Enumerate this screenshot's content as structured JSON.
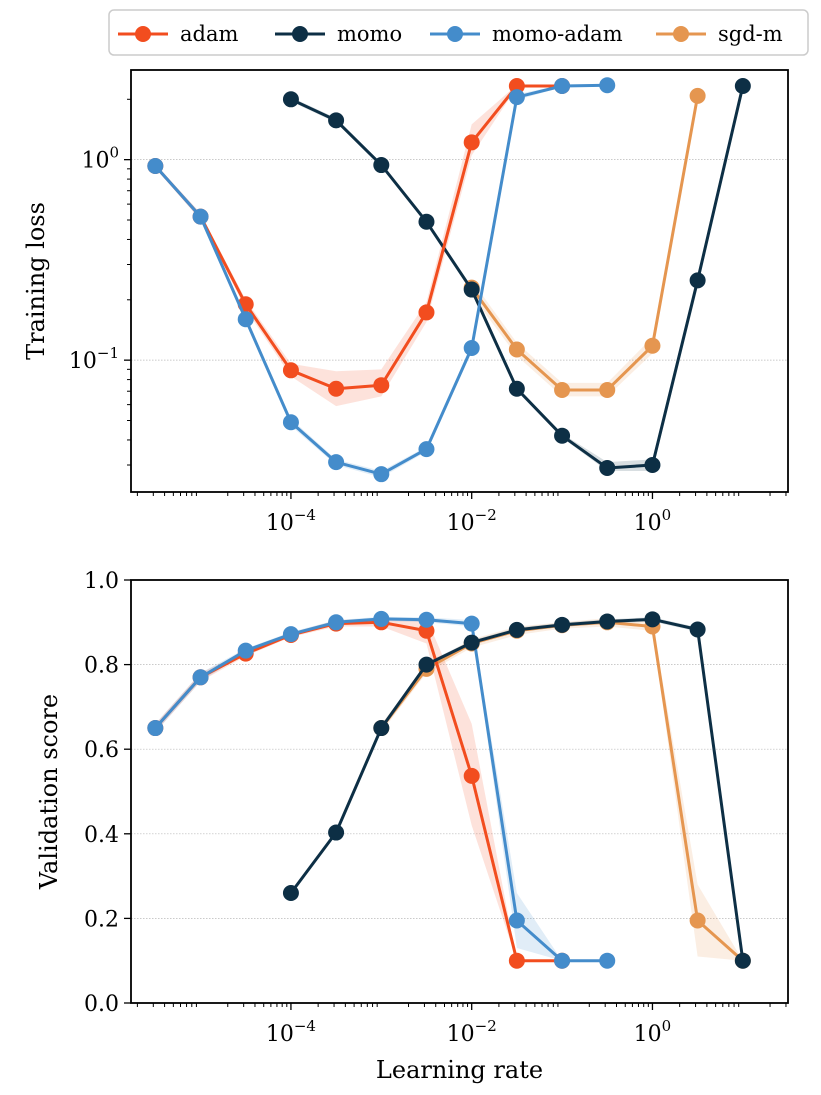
{
  "legend": {
    "position": "top-center",
    "entries": [
      {
        "name": "adam",
        "color": "#f24d1f"
      },
      {
        "name": "momo",
        "color": "#0d2f45"
      },
      {
        "name": "momo-adam",
        "color": "#448ccb"
      },
      {
        "name": "sgd-m",
        "color": "#e59650"
      }
    ]
  },
  "chart_data": [
    {
      "type": "line",
      "xscale": "log",
      "yscale": "log",
      "xlabel": "",
      "ylabel": "Training loss",
      "xlim": [
        1.7e-06,
        31.6
      ],
      "ylim": [
        0.022,
        2.8
      ],
      "xticks": [
        {
          "value": 0.0001,
          "base": "10",
          "exp": "−4"
        },
        {
          "value": 0.01,
          "base": "10",
          "exp": "−2"
        },
        {
          "value": 1,
          "base": "10",
          "exp": "0"
        }
      ],
      "yticks": [
        {
          "value": 1,
          "base": "10",
          "exp": "0"
        },
        {
          "value": 0.1,
          "base": "10",
          "exp": "−1"
        }
      ],
      "grid": "horizontal-major",
      "series": [
        {
          "name": "sgd-m",
          "color": "#e59650",
          "x": [
            0.01,
            0.0316,
            0.1,
            0.316,
            1,
            3.16
          ],
          "y": [
            0.23,
            0.113,
            0.071,
            0.071,
            0.118,
            2.08
          ],
          "band_lo": [
            0.21,
            0.105,
            0.066,
            0.066,
            0.108,
            2.0
          ],
          "band_hi": [
            0.25,
            0.122,
            0.077,
            0.077,
            0.13,
            2.15
          ]
        },
        {
          "name": "momo",
          "color": "#0d2f45",
          "x": [
            0.0001,
            0.000316,
            0.001,
            0.00316,
            0.01,
            0.0316,
            0.1,
            0.316,
            1,
            3.16,
            10
          ],
          "y": [
            2.0,
            1.57,
            0.94,
            0.49,
            0.225,
            0.072,
            0.042,
            0.029,
            0.03,
            0.25,
            2.33
          ],
          "band_lo": [
            1.95,
            1.53,
            0.92,
            0.48,
            0.218,
            0.07,
            0.041,
            0.028,
            0.028,
            0.23,
            2.3
          ],
          "band_hi": [
            2.05,
            1.61,
            0.96,
            0.5,
            0.232,
            0.074,
            0.043,
            0.031,
            0.032,
            0.27,
            2.36
          ]
        },
        {
          "name": "adam",
          "color": "#f24d1f",
          "x": [
            3.16e-06,
            1e-05,
            3.16e-05,
            0.0001,
            0.000316,
            0.001,
            0.00316,
            0.01,
            0.0316,
            0.1
          ],
          "y": [
            0.93,
            0.52,
            0.19,
            0.089,
            0.072,
            0.075,
            0.173,
            1.22,
            2.33,
            2.33
          ],
          "band_lo": [
            0.91,
            0.5,
            0.18,
            0.083,
            0.059,
            0.066,
            0.155,
            1.05,
            2.3,
            2.3
          ],
          "band_hi": [
            0.95,
            0.54,
            0.2,
            0.096,
            0.088,
            0.09,
            0.195,
            1.5,
            2.36,
            2.36
          ]
        },
        {
          "name": "momo-adam",
          "color": "#448ccb",
          "x": [
            3.16e-06,
            1e-05,
            3.16e-05,
            0.0001,
            0.000316,
            0.001,
            0.00316,
            0.01,
            0.0316,
            0.1,
            0.316
          ],
          "y": [
            0.93,
            0.52,
            0.16,
            0.049,
            0.031,
            0.027,
            0.036,
            0.115,
            2.05,
            2.33,
            2.35
          ],
          "band_lo": [
            0.91,
            0.5,
            0.155,
            0.047,
            0.03,
            0.026,
            0.035,
            0.11,
            1.98,
            2.3,
            2.32
          ],
          "band_hi": [
            0.95,
            0.54,
            0.165,
            0.051,
            0.032,
            0.028,
            0.037,
            0.121,
            2.12,
            2.36,
            2.38
          ]
        }
      ]
    },
    {
      "type": "line",
      "xscale": "log",
      "yscale": "linear",
      "xlabel": "Learning rate",
      "ylabel": "Validation score",
      "xlim": [
        1.7e-06,
        31.6
      ],
      "ylim": [
        0.0,
        1.0
      ],
      "xticks": [
        {
          "value": 0.0001,
          "base": "10",
          "exp": "−4"
        },
        {
          "value": 0.01,
          "base": "10",
          "exp": "−2"
        },
        {
          "value": 1,
          "base": "10",
          "exp": "0"
        }
      ],
      "yticks": [
        {
          "value": 0.0,
          "label": "0.0"
        },
        {
          "value": 0.2,
          "label": "0.2"
        },
        {
          "value": 0.4,
          "label": "0.4"
        },
        {
          "value": 0.6,
          "label": "0.6"
        },
        {
          "value": 0.8,
          "label": "0.8"
        },
        {
          "value": 1.0,
          "label": "1.0"
        }
      ],
      "grid": "horizontal",
      "series": [
        {
          "name": "sgd-m",
          "color": "#e59650",
          "x": [
            0.001,
            0.00316,
            0.01,
            0.0316,
            0.1,
            0.316,
            1,
            3.16,
            10
          ],
          "y": [
            0.65,
            0.79,
            0.85,
            0.88,
            0.893,
            0.9,
            0.89,
            0.195,
            0.1
          ],
          "band_lo": [
            0.64,
            0.78,
            0.84,
            0.87,
            0.885,
            0.89,
            0.88,
            0.11,
            0.1
          ],
          "band_hi": [
            0.66,
            0.8,
            0.86,
            0.89,
            0.9,
            0.91,
            0.9,
            0.28,
            0.1
          ]
        },
        {
          "name": "adam",
          "color": "#f24d1f",
          "x": [
            3.16e-06,
            1e-05,
            3.16e-05,
            0.0001,
            0.000316,
            0.001,
            0.00316,
            0.01,
            0.0316,
            0.1
          ],
          "y": [
            0.65,
            0.77,
            0.826,
            0.87,
            0.897,
            0.9,
            0.88,
            0.537,
            0.1,
            0.1
          ],
          "band_lo": [
            0.64,
            0.76,
            0.82,
            0.865,
            0.89,
            0.89,
            0.85,
            0.42,
            0.1,
            0.1
          ],
          "band_hi": [
            0.66,
            0.78,
            0.832,
            0.875,
            0.905,
            0.91,
            0.91,
            0.66,
            0.1,
            0.1
          ]
        },
        {
          "name": "momo-adam",
          "color": "#448ccb",
          "x": [
            3.16e-06,
            1e-05,
            3.16e-05,
            0.0001,
            0.000316,
            0.001,
            0.00316,
            0.01,
            0.0316,
            0.1,
            0.316
          ],
          "y": [
            0.65,
            0.77,
            0.833,
            0.872,
            0.9,
            0.908,
            0.906,
            0.897,
            0.195,
            0.1,
            0.1
          ],
          "band_lo": [
            0.64,
            0.76,
            0.828,
            0.867,
            0.895,
            0.903,
            0.9,
            0.89,
            0.13,
            0.1,
            0.1
          ],
          "band_hi": [
            0.66,
            0.78,
            0.838,
            0.877,
            0.905,
            0.913,
            0.912,
            0.905,
            0.26,
            0.1,
            0.1
          ]
        },
        {
          "name": "momo",
          "color": "#0d2f45",
          "x": [
            0.0001,
            0.000316,
            0.001,
            0.00316,
            0.01,
            0.0316,
            0.1,
            0.316,
            1,
            3.16,
            10
          ],
          "y": [
            0.26,
            0.403,
            0.65,
            0.8,
            0.852,
            0.882,
            0.894,
            0.902,
            0.907,
            0.883,
            0.1
          ],
          "band_lo": [
            0.255,
            0.398,
            0.645,
            0.795,
            0.847,
            0.877,
            0.889,
            0.897,
            0.902,
            0.878,
            0.1
          ],
          "band_hi": [
            0.265,
            0.408,
            0.655,
            0.805,
            0.857,
            0.887,
            0.899,
            0.907,
            0.912,
            0.888,
            0.1
          ]
        }
      ]
    }
  ]
}
